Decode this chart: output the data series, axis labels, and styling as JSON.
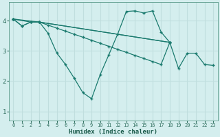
{
  "xlabel": "Humidex (Indice chaleur)",
  "bg_color": "#d4eeee",
  "grid_color": "#c0dede",
  "line_color": "#1a7a6e",
  "xlim": [
    -0.5,
    23.5
  ],
  "ylim": [
    0.7,
    4.6
  ],
  "yticks": [
    1,
    2,
    3,
    4
  ],
  "xticks": [
    0,
    1,
    2,
    3,
    4,
    5,
    6,
    7,
    8,
    9,
    10,
    11,
    12,
    13,
    14,
    15,
    16,
    17,
    18,
    19,
    20,
    21,
    22,
    23
  ],
  "series1_x": [
    0,
    1,
    2,
    3,
    4,
    5,
    6,
    7,
    8,
    9,
    10,
    11,
    12,
    13,
    14,
    15,
    16,
    17,
    18
  ],
  "series1_y": [
    4.05,
    3.82,
    3.95,
    3.95,
    3.85,
    3.75,
    3.65,
    3.55,
    3.45,
    3.35,
    3.25,
    3.15,
    3.05,
    2.95,
    2.85,
    2.75,
    2.65,
    2.55,
    3.28
  ],
  "series2_x": [
    0,
    1,
    2,
    3,
    4,
    5,
    6,
    7,
    8,
    9,
    10,
    11,
    12,
    13,
    14,
    15,
    16,
    17,
    18
  ],
  "series2_y": [
    4.05,
    3.82,
    3.95,
    3.95,
    3.58,
    2.93,
    2.55,
    2.1,
    1.62,
    1.42,
    2.22,
    2.88,
    3.55,
    4.3,
    4.32,
    4.25,
    4.32,
    3.62,
    3.28
  ],
  "series3_x": [
    0,
    2,
    3,
    18,
    19,
    20,
    21,
    22,
    23
  ],
  "series3_y": [
    4.05,
    3.95,
    3.95,
    3.28,
    2.42,
    2.92,
    2.92,
    2.55,
    2.52
  ],
  "series4_x": [
    0,
    3,
    18
  ],
  "series4_y": [
    4.05,
    3.95,
    3.28
  ]
}
